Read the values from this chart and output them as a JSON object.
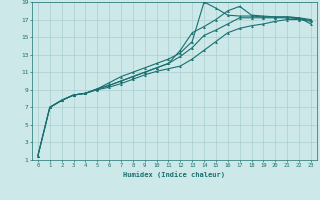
{
  "title": "",
  "xlabel": "Humidex (Indice chaleur)",
  "background_color": "#cce8e8",
  "grid_color": "#aacfcf",
  "line_color": "#1a7070",
  "xlim": [
    -0.5,
    23.5
  ],
  "ylim": [
    1,
    19
  ],
  "xticks": [
    0,
    1,
    2,
    3,
    4,
    5,
    6,
    7,
    8,
    9,
    10,
    11,
    12,
    13,
    14,
    15,
    16,
    17,
    18,
    19,
    20,
    21,
    22,
    23
  ],
  "yticks": [
    1,
    3,
    5,
    7,
    9,
    11,
    13,
    15,
    17,
    19
  ],
  "line1_x": [
    0,
    1,
    2,
    3,
    4,
    5,
    6,
    7,
    8,
    9,
    10,
    11,
    12,
    13,
    14,
    15,
    16,
    17,
    18,
    19,
    20,
    21,
    22,
    23
  ],
  "line1_y": [
    1.5,
    7.0,
    7.8,
    8.4,
    8.6,
    9.0,
    9.3,
    9.7,
    10.2,
    10.7,
    11.1,
    11.4,
    11.7,
    12.5,
    13.5,
    14.5,
    15.5,
    16.0,
    16.3,
    16.5,
    16.8,
    17.0,
    17.0,
    16.8
  ],
  "line2_x": [
    0,
    1,
    2,
    3,
    4,
    5,
    6,
    7,
    8,
    9,
    10,
    11,
    12,
    13,
    14,
    15,
    16,
    17,
    18,
    19,
    20,
    21,
    22,
    23
  ],
  "line2_y": [
    1.5,
    7.0,
    7.8,
    8.4,
    8.6,
    9.1,
    9.5,
    10.0,
    10.5,
    11.0,
    11.5,
    12.0,
    12.8,
    13.8,
    15.2,
    15.8,
    16.5,
    17.2,
    17.2,
    17.2,
    17.2,
    17.2,
    17.1,
    16.9
  ],
  "line3_x": [
    1,
    2,
    3,
    4,
    5,
    6,
    7,
    8,
    9,
    10,
    11,
    12,
    13,
    14,
    15,
    16,
    17,
    18,
    19,
    20,
    21,
    22,
    23
  ],
  "line3_y": [
    7.0,
    7.8,
    8.4,
    8.6,
    9.1,
    9.8,
    10.5,
    11.0,
    11.5,
    12.0,
    12.5,
    13.2,
    14.5,
    19.0,
    18.3,
    17.5,
    17.4,
    17.4,
    17.3,
    17.3,
    17.3,
    17.2,
    17.0
  ],
  "line4_x": [
    0,
    1,
    2,
    3,
    4,
    5,
    6,
    7,
    8,
    9,
    10,
    11,
    12,
    13,
    14,
    15,
    16,
    17,
    18,
    19,
    20,
    21,
    22,
    23
  ],
  "line4_y": [
    1.5,
    7.0,
    7.8,
    8.4,
    8.6,
    9.1,
    9.5,
    10.0,
    10.5,
    11.0,
    11.5,
    12.0,
    13.5,
    15.5,
    16.2,
    17.0,
    18.0,
    18.5,
    17.5,
    17.4,
    17.3,
    17.3,
    17.2,
    16.5
  ]
}
